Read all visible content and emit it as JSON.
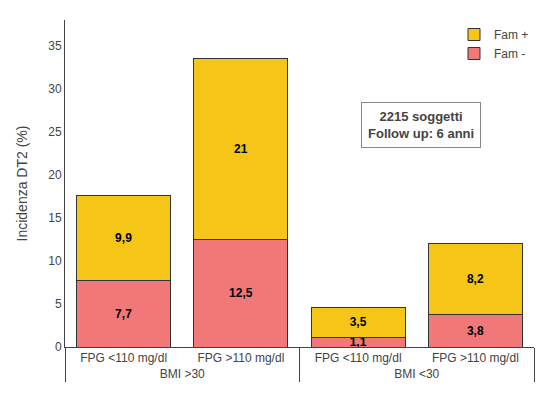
{
  "chart_data": {
    "type": "bar",
    "stacked": true,
    "categories": [
      [
        "BMI >30",
        "FPG <110 mg/dl"
      ],
      [
        "BMI >30",
        "FPG >110 mg/dl"
      ],
      [
        "BMI <30",
        "FPG <110 mg/dl"
      ],
      [
        "BMI <30",
        "FPG >110 mg/dl"
      ]
    ],
    "series": [
      {
        "name": "Fam -",
        "color": "#f07878",
        "values": [
          7.7,
          12.5,
          1.1,
          3.8
        ],
        "value_labels": [
          "7,7",
          "12,5",
          "1,1",
          "3,8"
        ]
      },
      {
        "name": "Fam +",
        "color": "#f5c518",
        "values": [
          9.9,
          21,
          3.5,
          8.2
        ],
        "value_labels": [
          "9,9",
          "21",
          "3,5",
          "8,2"
        ]
      }
    ],
    "ylabel": "Incidenza DT2 (%)",
    "ylim": [
      0,
      38
    ],
    "yticks": [
      0,
      5,
      10,
      15,
      20,
      25,
      30,
      35
    ],
    "grid": false,
    "legend": "upper right",
    "data_labels": true,
    "annotations": [
      "2215 soggetti\nFollow up: 6 anni"
    ]
  }
}
